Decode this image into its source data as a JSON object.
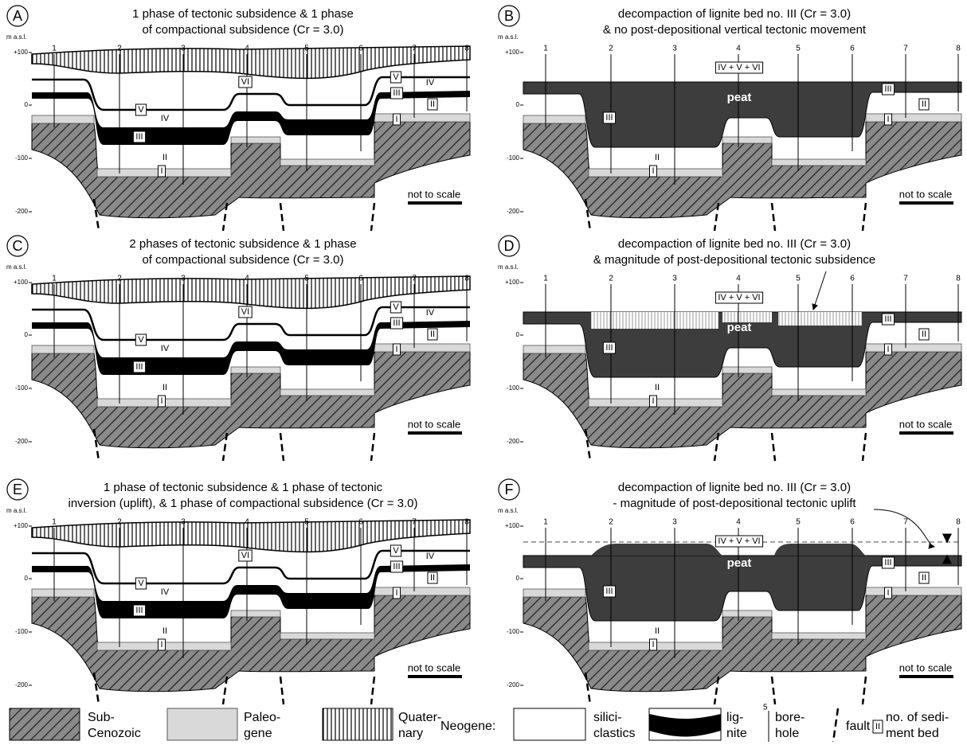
{
  "panels": [
    {
      "letter": "A",
      "title": [
        "1 phase of tectonic subsidence & 1 phase",
        "of compactional subsidence (Cr = 3.0)"
      ],
      "axis_unit": "m a.s.l.",
      "axis_ticks": [
        "+100",
        "0",
        "-100",
        "-200"
      ],
      "boreholes": [
        "1",
        "2",
        "3",
        "4",
        "5",
        "6",
        "7",
        "8"
      ],
      "bed_labels": [
        "VI",
        "V",
        "IV",
        "III",
        "II",
        "I",
        "V",
        "IV",
        "III",
        "II",
        "I"
      ],
      "note": "not to scale"
    },
    {
      "letter": "B",
      "title": [
        "decompaction of lignite bed no. III (Cr = 3.0)",
        "& no post-depositional vertical tectonic movement"
      ],
      "axis_unit": "m a.s.l.",
      "axis_ticks": [
        "+100",
        "0",
        "-100",
        "-200"
      ],
      "boreholes": [
        "1",
        "2",
        "3",
        "4",
        "5",
        "6",
        "7",
        "8"
      ],
      "bed_labels": [
        "IV + V + VI",
        "III",
        "II",
        "I",
        "III",
        "II",
        "I"
      ],
      "peat": "peat",
      "note": "not to scale"
    },
    {
      "letter": "C",
      "title": [
        "2 phases of tectonic subsidence & 1 phase",
        "of compactional subsidence (Cr = 3.0)"
      ],
      "axis_unit": "m a.s.l.",
      "axis_ticks": [
        "+100",
        "0",
        "-100",
        "-200"
      ],
      "boreholes": [
        "1",
        "2",
        "3",
        "4",
        "5",
        "6",
        "7",
        "8"
      ],
      "bed_labels": [
        "VI",
        "V",
        "IV",
        "III",
        "II",
        "I",
        "V",
        "IV",
        "III",
        "II",
        "I"
      ],
      "note": "not to scale"
    },
    {
      "letter": "D",
      "title": [
        "decompaction of lignite bed no. III (Cr = 3.0)",
        "& magnitude of post-depositional tectonic subsidence"
      ],
      "axis_unit": "m a.s.l.",
      "axis_ticks": [
        "+100",
        "0",
        "-100",
        "-200"
      ],
      "boreholes": [
        "1",
        "2",
        "3",
        "4",
        "5",
        "6",
        "7",
        "8"
      ],
      "bed_labels": [
        "IV + V + VI",
        "III",
        "II",
        "I",
        "III",
        "II",
        "I"
      ],
      "peat": "peat",
      "note": "not to scale"
    },
    {
      "letter": "E",
      "title": [
        "1 phase of tectonic subsidence & 1 phase of tectonic",
        "inversion (uplift), & 1 phase of compactional subsidence (Cr = 3.0)"
      ],
      "axis_unit": "m a.s.l.",
      "axis_ticks": [
        "+100",
        "0",
        "-100",
        "-200"
      ],
      "boreholes": [
        "1",
        "2",
        "3",
        "4",
        "5",
        "6",
        "7",
        "8"
      ],
      "bed_labels": [
        "VI",
        "V",
        "IV",
        "III",
        "II",
        "I",
        "V",
        "IV",
        "III",
        "II",
        "I"
      ],
      "note": "not to scale"
    },
    {
      "letter": "F",
      "title": [
        "decompaction of lignite bed no. III (Cr = 3.0)",
        "- magnitude of post-depositional tectonic uplift"
      ],
      "axis_unit": "m a.s.l.",
      "axis_ticks": [
        "+100",
        "0",
        "-100",
        "-200"
      ],
      "boreholes": [
        "1",
        "2",
        "3",
        "4",
        "5",
        "6",
        "7",
        "8"
      ],
      "bed_labels": [
        "IV + V + VI",
        "III",
        "II",
        "I",
        "III",
        "II",
        "I"
      ],
      "peat": "peat",
      "note": "not to scale"
    }
  ],
  "legend": {
    "sub_cenozoic": [
      "Sub-",
      "Cenozoic"
    ],
    "paleogene": [
      "Paleo-",
      "gene"
    ],
    "quaternary": [
      "Quater-",
      "nary"
    ],
    "neogene": "Neogene:",
    "siliciclastics": [
      "silici-",
      "clastics"
    ],
    "lignite": [
      "lig-",
      "nite"
    ],
    "borehole_number": "5",
    "borehole": [
      "bore-",
      "hole"
    ],
    "fault": "fault",
    "bed_box": "II",
    "bed": [
      "no. of sedi-",
      "ment bed"
    ]
  }
}
